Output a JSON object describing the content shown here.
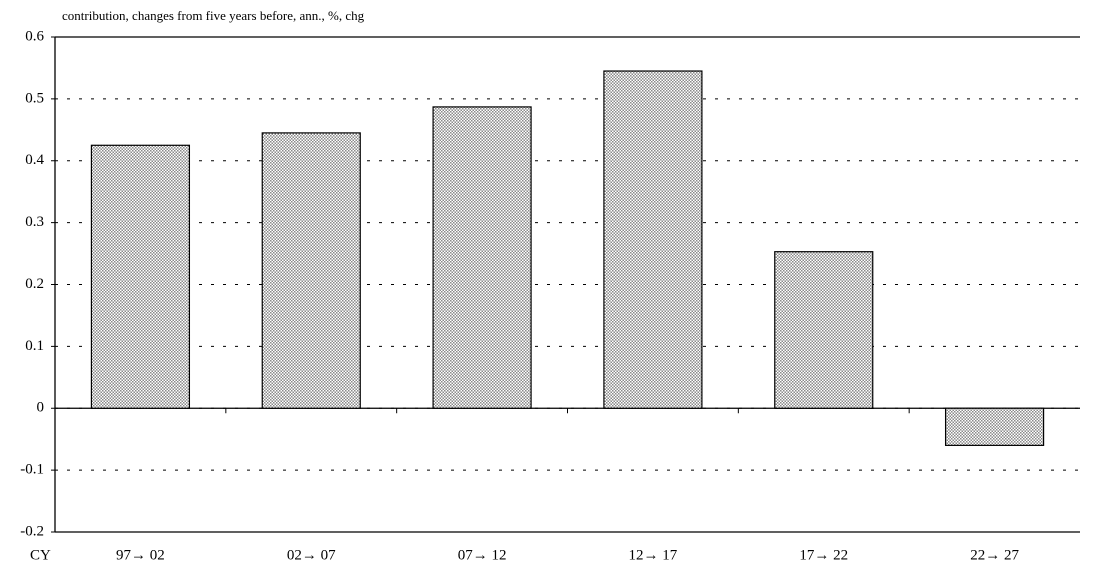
{
  "chart_data": {
    "type": "bar",
    "title": "contribution, changes from five years before, ann., %, chg",
    "xlabel": "CY",
    "categories": [
      "97→ 02",
      "02→ 07",
      "07→ 12",
      "12→ 17",
      "17→ 22",
      "22→ 27"
    ],
    "values": [
      0.425,
      0.445,
      0.487,
      0.545,
      0.253,
      -0.06
    ],
    "color": "#8a8a8a",
    "ylim": [
      -0.2,
      0.6
    ],
    "yticks": [
      -0.2,
      -0.1,
      0,
      0.1,
      0.2,
      0.3,
      0.4,
      0.5,
      0.6
    ],
    "grid": true
  }
}
